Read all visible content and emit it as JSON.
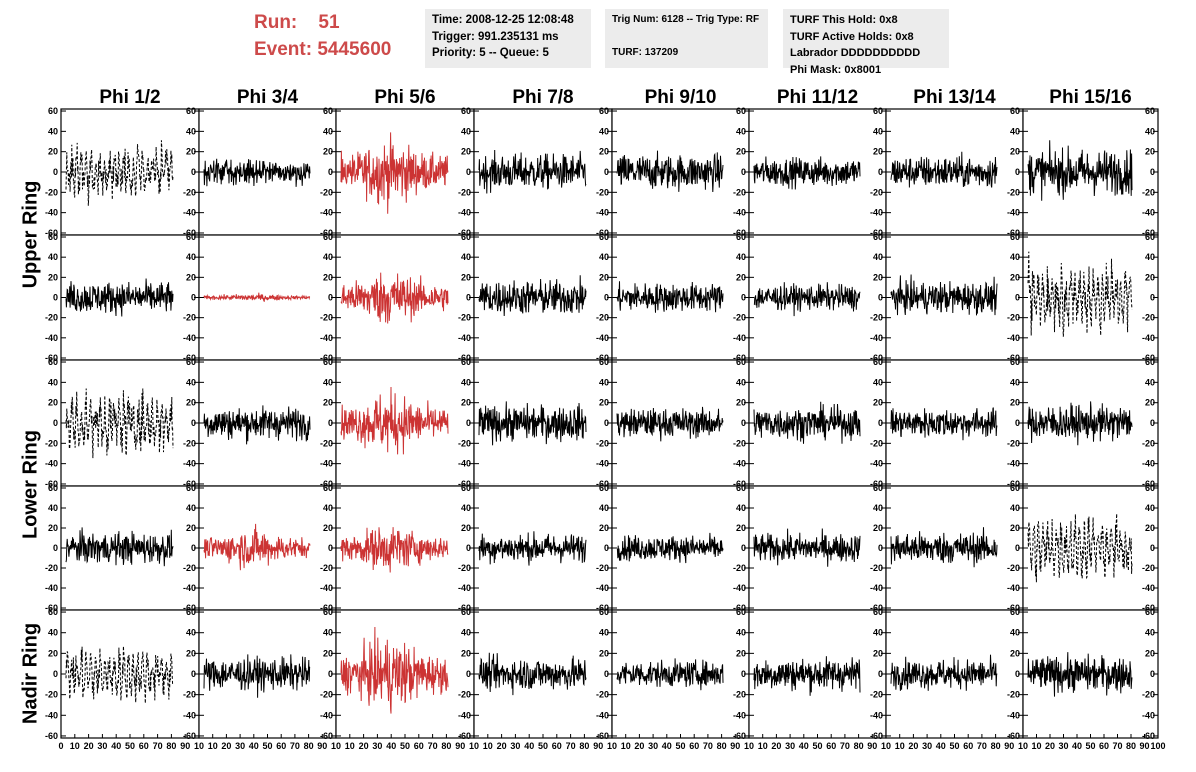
{
  "header": {
    "run_label": "Run:",
    "run_value": "51",
    "event_label": "Event:",
    "event_value": "5445600",
    "time": "Time: 2008-12-25 12:08:48",
    "trigger": "Trigger: 991.235131 ms",
    "priority": "Priority: 5 -- Queue: 5",
    "trig_num": "Trig Num: 6128 -- Trig Type: RF",
    "turf": "TURF: 137209",
    "turf_this_hold": "TURF This Hold: 0x8",
    "turf_active_holds": "TURF Active Holds: 0x8",
    "labrador": "Labrador DDDDDDDDDD",
    "phi_mask": "Phi Mask: 0x8001"
  },
  "colors": {
    "highlight": "#cc3333",
    "normal": "#000000",
    "header_text": "#cd4a4a",
    "box_background": "#ececec"
  },
  "chart_data": {
    "type": "line",
    "columns": [
      "Phi 1/2",
      "Phi 3/4",
      "Phi 5/6",
      "Phi 7/8",
      "Phi 9/10",
      "Phi 11/12",
      "Phi 13/14",
      "Phi 15/16"
    ],
    "ring_labels": [
      "Upper Ring",
      "Lower Ring",
      "Nadir Ring"
    ],
    "ring_row_spans": [
      [
        0,
        1
      ],
      [
        2,
        3
      ],
      [
        4
      ]
    ],
    "ylim": [
      -62,
      62
    ],
    "xlim": [
      0,
      100
    ],
    "y_ticks": [
      -60,
      -40,
      -20,
      0,
      20,
      40,
      60
    ],
    "x_ticks_first": [
      "0",
      "10",
      "20",
      "30",
      "40",
      "50",
      "60",
      "70",
      "80",
      "90",
      "10"
    ],
    "x_ticks_middle": [
      "10",
      "20",
      "30",
      "40",
      "50",
      "60",
      "70",
      "80",
      "90",
      "10"
    ],
    "x_ticks_last": [
      "10",
      "20",
      "30",
      "40",
      "50",
      "60",
      "70",
      "80",
      "90",
      "100"
    ],
    "waveform_amplitudes": [
      [
        22,
        16,
        36,
        22,
        22,
        18,
        20,
        28
      ],
      [
        20,
        4,
        30,
        22,
        18,
        16,
        20,
        30
      ],
      [
        26,
        20,
        34,
        22,
        18,
        20,
        18,
        22
      ],
      [
        20,
        22,
        26,
        18,
        16,
        18,
        20,
        26
      ],
      [
        22,
        20,
        40,
        20,
        16,
        20,
        18,
        22
      ]
    ],
    "waveform_styles": [
      [
        "dashed",
        "solid",
        "red",
        "solid",
        "solid",
        "solid",
        "solid",
        "solid"
      ],
      [
        "solid",
        "red",
        "red",
        "solid",
        "solid",
        "solid",
        "solid",
        "dashed"
      ],
      [
        "dashed",
        "solid",
        "red",
        "solid",
        "solid",
        "solid",
        "solid",
        "solid"
      ],
      [
        "solid",
        "red",
        "red",
        "solid",
        "solid",
        "solid",
        "solid",
        "dashed"
      ],
      [
        "dashed",
        "solid",
        "red",
        "solid",
        "solid",
        "solid",
        "solid",
        "solid"
      ]
    ]
  }
}
